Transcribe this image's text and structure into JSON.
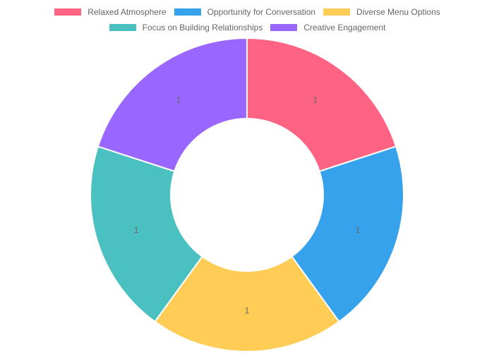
{
  "chart_data": {
    "type": "doughnut",
    "categories": [
      "Relaxed Atmosphere",
      "Opportunity for Conversation",
      "Diverse Menu Options",
      "Focus on Building Relationships",
      "Creative Engagement"
    ],
    "values": [
      1,
      1,
      1,
      1,
      1
    ],
    "colors": [
      "#ff6384",
      "#36a2eb",
      "#ffcd56",
      "#4bc0c0",
      "#9966ff"
    ],
    "legend": "top"
  }
}
